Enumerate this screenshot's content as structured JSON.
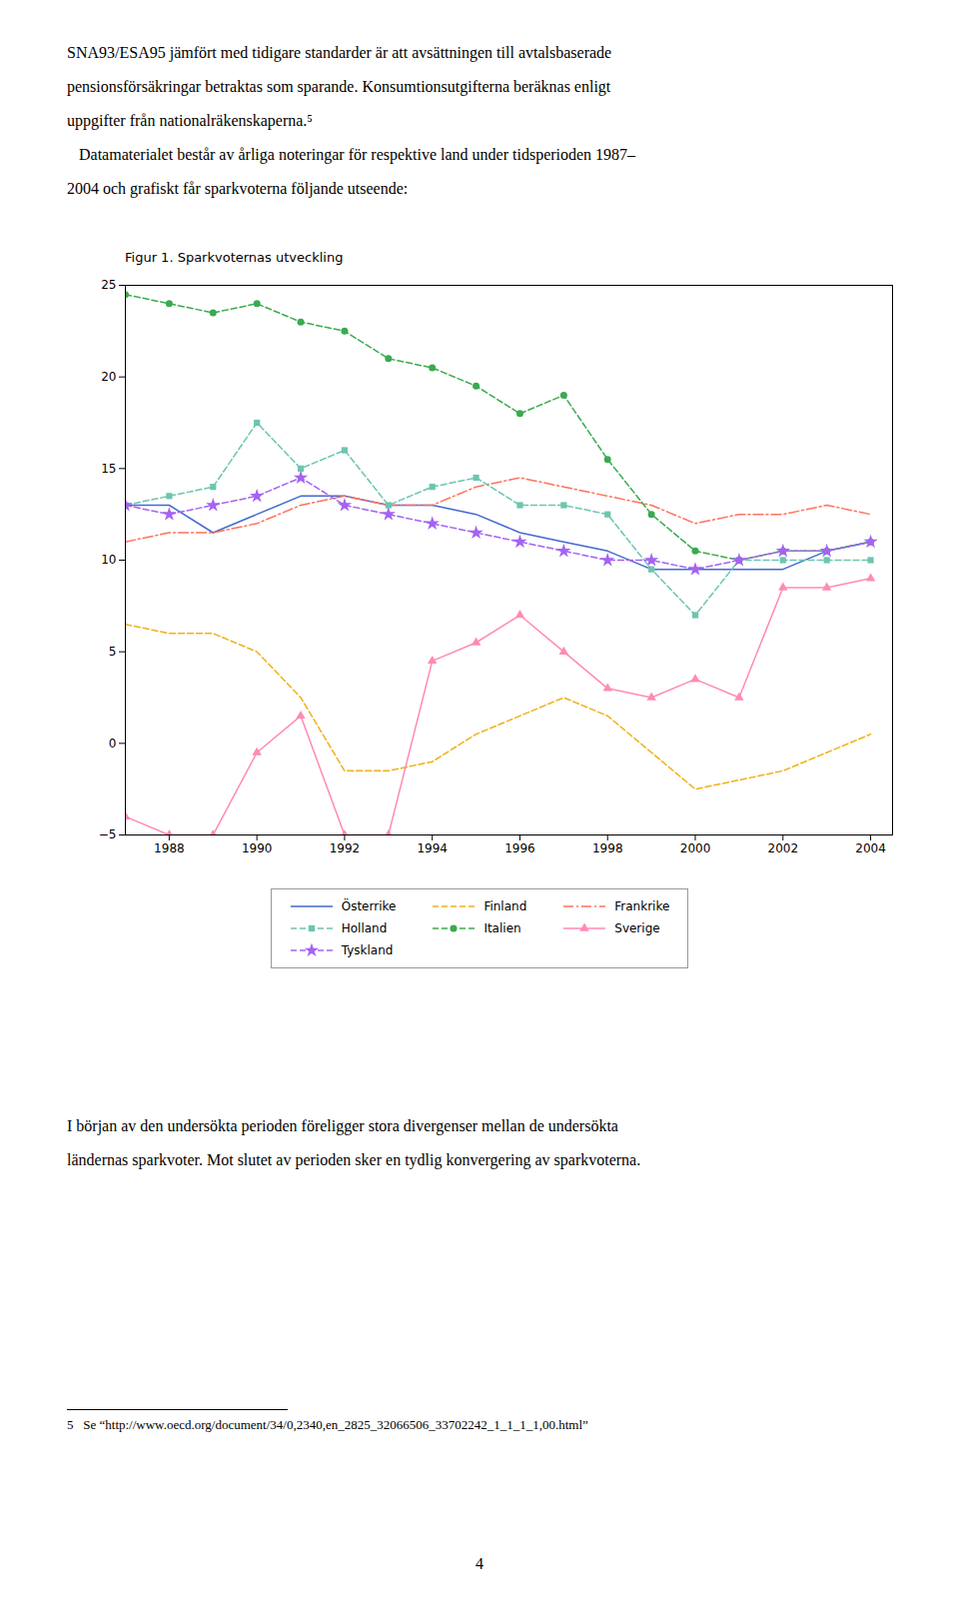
{
  "chart_data": {
    "type": "line",
    "title": "Figur 1. Sparkvoternas utveckling",
    "x": [
      1987,
      1988,
      1989,
      1990,
      1991,
      1992,
      1993,
      1994,
      1995,
      1996,
      1997,
      1998,
      1999,
      2000,
      2001,
      2002,
      2003,
      2004
    ],
    "series": [
      {
        "name": "Österrike",
        "line_style": "solid",
        "marker": "none",
        "values": [
          13.0,
          13.0,
          11.5,
          12.5,
          13.5,
          13.5,
          13.0,
          13.0,
          12.5,
          11.5,
          11.0,
          10.5,
          9.5,
          9.5,
          9.5,
          9.5,
          10.5,
          11.0
        ]
      },
      {
        "name": "Finland",
        "line_style": "dashed",
        "marker": "none",
        "values": [
          6.5,
          6.0,
          6.0,
          5.0,
          2.5,
          -1.5,
          -1.5,
          -1.0,
          0.5,
          1.5,
          2.5,
          1.5,
          -0.5,
          -2.5,
          -2.0,
          -1.5,
          -0.5,
          0.5
        ]
      },
      {
        "name": "Frankrike",
        "line_style": "dashdot",
        "marker": "none",
        "values": [
          11.0,
          11.5,
          11.5,
          12.0,
          13.0,
          13.5,
          13.0,
          13.0,
          14.0,
          14.5,
          14.0,
          13.5,
          13.0,
          12.0,
          12.5,
          12.5,
          13.0,
          12.5
        ]
      },
      {
        "name": "Holland",
        "line_style": "dashed",
        "marker": "square",
        "values": [
          13.0,
          13.5,
          14.0,
          17.5,
          15.0,
          16.0,
          13.0,
          14.0,
          14.5,
          13.0,
          13.0,
          12.5,
          9.5,
          7.0,
          10.0,
          10.0,
          10.0,
          10.0
        ]
      },
      {
        "name": "Italien",
        "line_style": "dashed",
        "marker": "circle",
        "values": [
          24.5,
          24.0,
          23.5,
          24.0,
          23.0,
          22.5,
          21.0,
          20.5,
          19.5,
          18.0,
          19.0,
          15.5,
          12.5,
          10.5,
          10.0,
          10.5,
          10.5,
          11.0
        ]
      },
      {
        "name": "Sverige",
        "line_style": "solid",
        "marker": "triangle",
        "values": [
          -4.0,
          -5.0,
          -5.0,
          -0.5,
          1.5,
          -5.0,
          -5.0,
          4.5,
          5.5,
          7.0,
          5.0,
          3.0,
          2.5,
          3.5,
          2.5,
          8.5,
          8.5,
          9.0
        ]
      },
      {
        "name": "Tyskland",
        "line_style": "dashed",
        "marker": "star",
        "values": [
          13.0,
          12.5,
          13.0,
          13.5,
          14.5,
          13.0,
          12.5,
          12.0,
          11.5,
          11.0,
          10.5,
          10.0,
          10.0,
          9.5,
          10.0,
          10.5,
          10.5,
          11.0
        ]
      }
    ],
    "xlim": [
      1987,
      2004.5
    ],
    "xticks": [
      1988,
      1990,
      1992,
      1994,
      1996,
      1998,
      2000,
      2002,
      2004
    ],
    "ylim": [
      -5,
      25
    ],
    "yticks": [
      -5,
      0,
      5,
      10,
      15,
      20,
      25
    ],
    "grid": false,
    "legend": "bottom"
  },
  "page_text": {
    "text_top": [
      "SNA93/ESA95 jämfört med tidigare standarder är att avsättningen till avtalsbaserade",
      "pensionsförsäkringar betraktas som sparande. Konsumtionsutgifterna beräknas enligt",
      "uppgifter från nationalräkenskaperna.⁵",
      "   Datamaterialet består av årliga noteringar för respektive land under tidsperioden 1987–",
      "2004 och grafiskt får sparkvoterna följande utseende:"
    ],
    "text_bottom": [
      "I början av den undersökta perioden föreligger stora divergenser mellan de undersökta",
      "ländernas sparkvoter. Mot slutet av perioden sker en tydlig konvergering av sparkvoterna."
    ],
    "footnote": "5   Se “http://www.oecd.org/document/34/0,2340,en_2825_32066506_33702242_1_1_1_1,00.html”",
    "page_number": "4"
  }
}
